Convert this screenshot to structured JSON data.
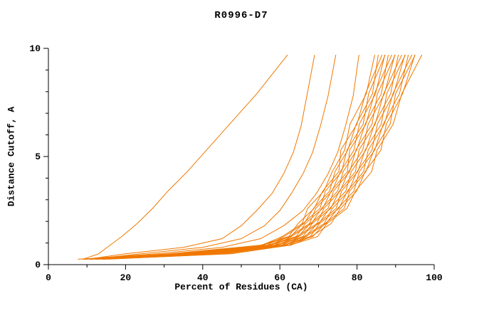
{
  "colors": {
    "curve": "#f07800",
    "axis": "#000000",
    "background": "#ffffff"
  },
  "chart_data": {
    "type": "line",
    "title": "R0996-D7",
    "xlabel": "Percent of Residues (CA)",
    "ylabel": "Distance Cutoff, A",
    "xlim": [
      0,
      100
    ],
    "ylim": [
      0,
      10
    ],
    "x_ticks": [
      0,
      20,
      40,
      60,
      80,
      100
    ],
    "y_ticks": [
      0,
      5,
      10
    ],
    "x_minor_step": 10,
    "y_minor_step": 1,
    "grid": false,
    "legend": false,
    "line_color": "#f07800",
    "series": [
      [
        [
          8.8,
          0.25
        ],
        [
          31.2,
          0.5
        ],
        [
          55.4,
          0.9
        ],
        [
          60.6,
          1.3
        ],
        [
          65.8,
          1.9
        ],
        [
          67.2,
          2.6
        ],
        [
          71.4,
          3.4
        ],
        [
          73.6,
          4.3
        ],
        [
          76.8,
          5.3
        ],
        [
          78.2,
          6.5
        ],
        [
          82.4,
          7.9
        ],
        [
          84.6,
          9.7
        ]
      ],
      [
        [
          7.6,
          0.25
        ],
        [
          33.3,
          0.5
        ],
        [
          55.1,
          0.9
        ],
        [
          62.3,
          1.3
        ],
        [
          64.7,
          1.9
        ],
        [
          68.9,
          2.6
        ],
        [
          71.1,
          3.4
        ],
        [
          75.3,
          4.3
        ],
        [
          75.8,
          5.3
        ],
        [
          80.0,
          6.5
        ],
        [
          82.2,
          7.9
        ],
        [
          86.5,
          9.7
        ]
      ],
      [
        [
          9.2,
          0.25
        ],
        [
          33.4,
          0.5
        ],
        [
          56.7,
          0.9
        ],
        [
          61.1,
          1.3
        ],
        [
          66.3,
          1.9
        ],
        [
          68.7,
          2.6
        ],
        [
          72.9,
          3.4
        ],
        [
          74.3,
          4.3
        ],
        [
          77.6,
          5.3
        ],
        [
          79.8,
          6.5
        ],
        [
          84.0,
          7.9
        ],
        [
          85.5,
          9.7
        ]
      ],
      [
        [
          8.8,
          0.25
        ],
        [
          35.5,
          0.5
        ],
        [
          55.6,
          0.9
        ],
        [
          62.8,
          1.3
        ],
        [
          66.0,
          1.9
        ],
        [
          70.4,
          2.6
        ],
        [
          71.8,
          3.4
        ],
        [
          76.0,
          4.3
        ],
        [
          77.4,
          5.3
        ],
        [
          81.6,
          6.5
        ],
        [
          83.0,
          7.9
        ],
        [
          87.3,
          9.7
        ]
      ],
      [
        [
          10.5,
          0.25
        ],
        [
          34.7,
          0.5
        ],
        [
          57.3,
          0.9
        ],
        [
          62.5,
          1.3
        ],
        [
          67.7,
          1.9
        ],
        [
          69.3,
          2.6
        ],
        [
          73.5,
          3.4
        ],
        [
          75.7,
          4.3
        ],
        [
          79.2,
          5.3
        ],
        [
          80.6,
          6.5
        ],
        [
          84.8,
          7.9
        ],
        [
          87.2,
          9.7
        ]
      ],
      [
        [
          9.3,
          0.25
        ],
        [
          36.8,
          0.5
        ],
        [
          57.0,
          0.9
        ],
        [
          64.2,
          1.3
        ],
        [
          66.6,
          1.9
        ],
        [
          71.1,
          2.6
        ],
        [
          73.3,
          3.4
        ],
        [
          77.5,
          4.3
        ],
        [
          78.1,
          5.3
        ],
        [
          82.3,
          6.5
        ],
        [
          84.5,
          7.9
        ],
        [
          89.0,
          9.7
        ]
      ],
      [
        [
          10.9,
          0.25
        ],
        [
          36.9,
          0.5
        ],
        [
          58.6,
          0.9
        ],
        [
          63.0,
          1.3
        ],
        [
          68.2,
          1.9
        ],
        [
          70.8,
          2.6
        ],
        [
          75.0,
          3.4
        ],
        [
          76.4,
          4.3
        ],
        [
          79.9,
          5.3
        ],
        [
          82.1,
          6.5
        ],
        [
          86.3,
          7.9
        ],
        [
          88.1,
          9.7
        ]
      ],
      [
        [
          10.5,
          0.25
        ],
        [
          39.0,
          0.5
        ],
        [
          57.5,
          0.9
        ],
        [
          64.7,
          1.3
        ],
        [
          67.9,
          1.9
        ],
        [
          72.5,
          2.6
        ],
        [
          73.9,
          3.4
        ],
        [
          78.1,
          4.3
        ],
        [
          79.7,
          5.3
        ],
        [
          83.9,
          6.5
        ],
        [
          85.3,
          7.9
        ],
        [
          89.9,
          9.7
        ]
      ],
      [
        [
          12.1,
          0.25
        ],
        [
          38.3,
          0.5
        ],
        [
          59.2,
          0.9
        ],
        [
          64.4,
          1.3
        ],
        [
          69.6,
          1.9
        ],
        [
          71.4,
          2.6
        ],
        [
          75.6,
          3.4
        ],
        [
          77.8,
          4.3
        ],
        [
          81.5,
          5.3
        ],
        [
          82.9,
          6.5
        ],
        [
          87.1,
          7.9
        ],
        [
          89.8,
          9.7
        ]
      ],
      [
        [
          10.9,
          0.25
        ],
        [
          40.3,
          0.5
        ],
        [
          58.8,
          0.9
        ],
        [
          66.0,
          1.3
        ],
        [
          68.4,
          1.9
        ],
        [
          73.2,
          2.6
        ],
        [
          75.4,
          3.4
        ],
        [
          79.6,
          4.3
        ],
        [
          80.5,
          5.3
        ],
        [
          84.7,
          6.5
        ],
        [
          86.9,
          7.9
        ],
        [
          91.6,
          9.7
        ]
      ],
      [
        [
          12.5,
          0.25
        ],
        [
          40.4,
          0.5
        ],
        [
          60.5,
          0.9
        ],
        [
          64.9,
          1.3
        ],
        [
          70.1,
          1.9
        ],
        [
          72.9,
          2.6
        ],
        [
          77.1,
          3.4
        ],
        [
          78.5,
          4.3
        ],
        [
          82.3,
          5.3
        ],
        [
          84.5,
          6.5
        ],
        [
          88.7,
          7.9
        ],
        [
          90.7,
          9.7
        ]
      ],
      [
        [
          12.1,
          0.25
        ],
        [
          42.5,
          0.5
        ],
        [
          59.4,
          0.9
        ],
        [
          66.6,
          1.3
        ],
        [
          69.8,
          1.9
        ],
        [
          74.6,
          2.6
        ],
        [
          76.0,
          3.4
        ],
        [
          80.2,
          4.3
        ],
        [
          82.1,
          5.3
        ],
        [
          86.3,
          6.5
        ],
        [
          87.7,
          7.9
        ],
        [
          92.5,
          9.7
        ]
      ],
      [
        [
          13.7,
          0.25
        ],
        [
          41.8,
          0.5
        ],
        [
          61.1,
          0.9
        ],
        [
          66.3,
          1.3
        ],
        [
          71.5,
          1.9
        ],
        [
          73.6,
          2.6
        ],
        [
          77.8,
          3.4
        ],
        [
          80.0,
          4.3
        ],
        [
          83.9,
          5.3
        ],
        [
          85.3,
          6.5
        ],
        [
          89.5,
          7.9
        ],
        [
          92.4,
          9.7
        ]
      ],
      [
        [
          12.6,
          0.25
        ],
        [
          43.9,
          0.5
        ],
        [
          60.7,
          0.9
        ],
        [
          67.9,
          1.3
        ],
        [
          70.3,
          1.9
        ],
        [
          75.3,
          2.6
        ],
        [
          77.5,
          3.4
        ],
        [
          81.7,
          4.3
        ],
        [
          82.9,
          5.3
        ],
        [
          87.1,
          6.5
        ],
        [
          89.3,
          7.9
        ],
        [
          94.2,
          9.7
        ]
      ],
      [
        [
          14.2,
          0.25
        ],
        [
          44.0,
          0.5
        ],
        [
          62.4,
          0.9
        ],
        [
          66.8,
          1.3
        ],
        [
          72.0,
          1.9
        ],
        [
          75.0,
          2.6
        ],
        [
          79.2,
          3.4
        ],
        [
          80.6,
          4.3
        ],
        [
          84.6,
          5.3
        ],
        [
          86.8,
          6.5
        ],
        [
          91.0,
          7.9
        ],
        [
          93.3,
          9.7
        ]
      ],
      [
        [
          13.8,
          0.25
        ],
        [
          46.0,
          0.5
        ],
        [
          61.3,
          0.9
        ],
        [
          68.5,
          1.3
        ],
        [
          71.7,
          1.9
        ],
        [
          76.7,
          2.6
        ],
        [
          78.1,
          3.4
        ],
        [
          82.3,
          4.3
        ],
        [
          84.4,
          5.3
        ],
        [
          88.6,
          6.5
        ],
        [
          90.0,
          7.9
        ],
        [
          95.1,
          9.7
        ]
      ],
      [
        [
          15.4,
          0.25
        ],
        [
          45.3,
          0.5
        ],
        [
          62.9,
          0.9
        ],
        [
          68.1,
          1.3
        ],
        [
          73.3,
          1.9
        ],
        [
          75.7,
          2.6
        ],
        [
          79.9,
          3.4
        ],
        [
          82.1,
          4.3
        ],
        [
          86.2,
          5.3
        ],
        [
          87.6,
          6.5
        ],
        [
          91.8,
          7.9
        ],
        [
          95.0,
          9.7
        ]
      ],
      [
        [
          14.2,
          0.25
        ],
        [
          47.4,
          0.5
        ],
        [
          62.6,
          0.9
        ],
        [
          69.8,
          1.3
        ],
        [
          72.2,
          1.9
        ],
        [
          77.4,
          2.6
        ],
        [
          79.6,
          3.4
        ],
        [
          83.8,
          4.3
        ],
        [
          85.2,
          5.3
        ],
        [
          89.4,
          6.5
        ],
        [
          91.6,
          7.9
        ],
        [
          96.8,
          9.7
        ]
      ],
      [
        [
          9,
          0.25
        ],
        [
          13,
          0.5
        ],
        [
          16,
          0.9
        ],
        [
          19,
          1.3
        ],
        [
          23,
          1.9
        ],
        [
          27,
          2.6
        ],
        [
          31,
          3.4
        ],
        [
          36,
          4.3
        ],
        [
          41,
          5.3
        ],
        [
          47,
          6.5
        ],
        [
          54,
          7.9
        ],
        [
          62,
          9.7
        ]
      ],
      [
        [
          10,
          0.25
        ],
        [
          20,
          0.5
        ],
        [
          35,
          0.8
        ],
        [
          45,
          1.2
        ],
        [
          50,
          1.8
        ],
        [
          54,
          2.5
        ],
        [
          58,
          3.3
        ],
        [
          61,
          4.2
        ],
        [
          63.5,
          5.2
        ],
        [
          65.5,
          6.4
        ],
        [
          67,
          7.8
        ],
        [
          69,
          9.7
        ]
      ],
      [
        [
          11,
          0.25
        ],
        [
          24,
          0.5
        ],
        [
          40,
          0.8
        ],
        [
          50,
          1.2
        ],
        [
          56,
          1.8
        ],
        [
          60,
          2.5
        ],
        [
          63,
          3.3
        ],
        [
          66,
          4.2
        ],
        [
          68.5,
          5.2
        ],
        [
          70.5,
          6.4
        ],
        [
          72.5,
          7.8
        ],
        [
          74.5,
          9.7
        ]
      ],
      [
        [
          12,
          0.3
        ],
        [
          28,
          0.5
        ],
        [
          45,
          0.8
        ],
        [
          55,
          1.2
        ],
        [
          61,
          1.8
        ],
        [
          66,
          2.5
        ],
        [
          69.5,
          3.3
        ],
        [
          72.5,
          4.2
        ],
        [
          75,
          5.2
        ],
        [
          77,
          6.4
        ],
        [
          79,
          7.8
        ],
        [
          80.5,
          9.7
        ]
      ]
    ]
  }
}
